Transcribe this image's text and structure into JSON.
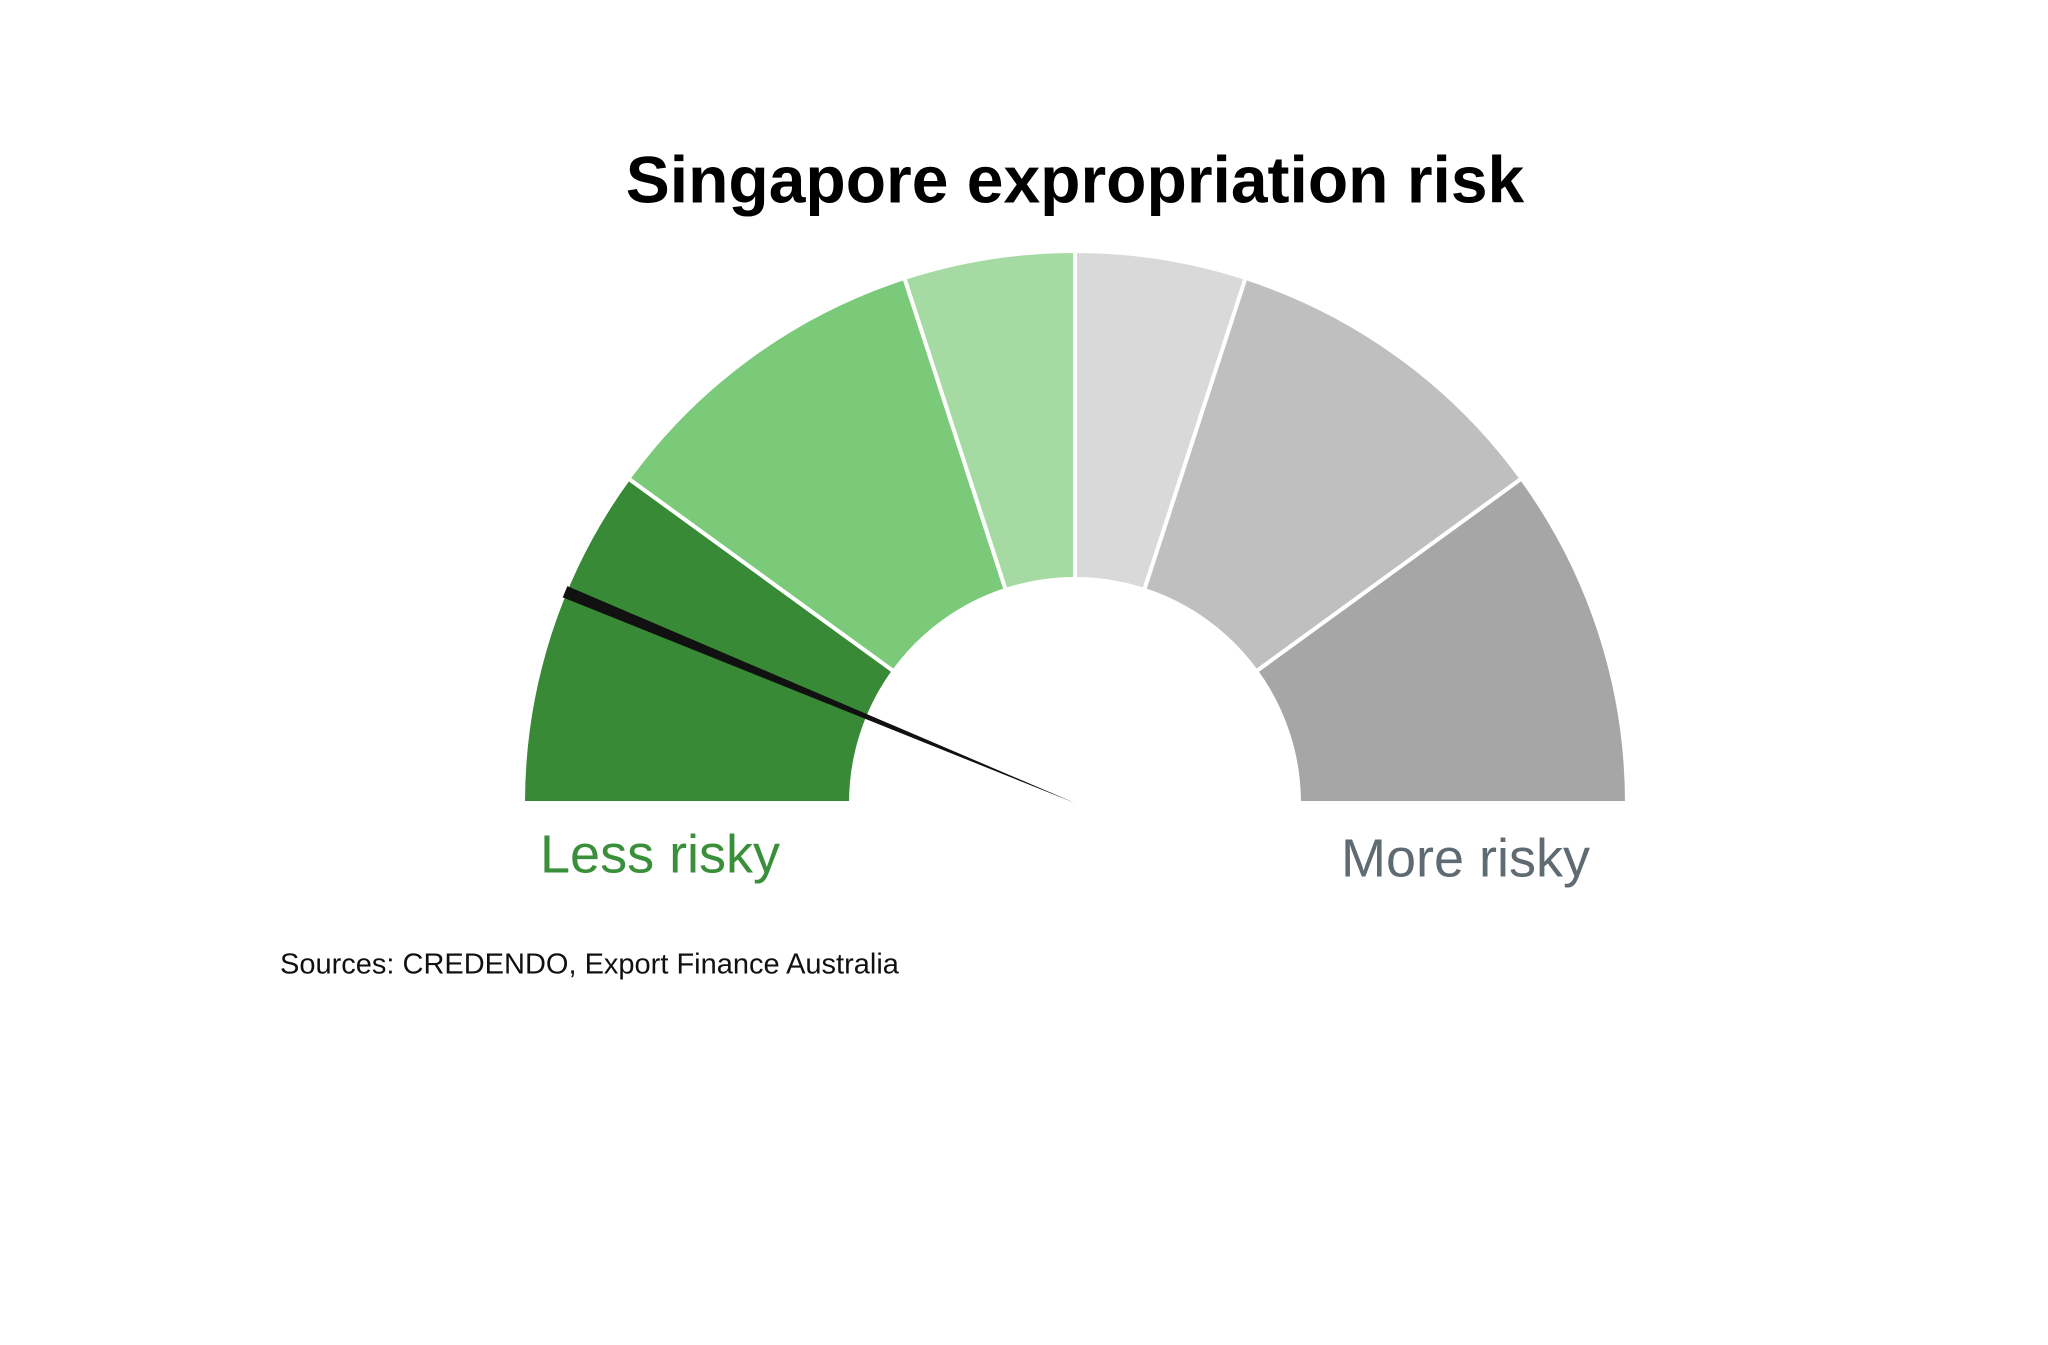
{
  "chart_data": {
    "type": "gauge",
    "title": "Singapore expropriation risk",
    "values": [
      2,
      2,
      1,
      1,
      2,
      2
    ],
    "colors": [
      "#388a36",
      "#7aca7a",
      "#a5dba3",
      "#d9d9d9",
      "#bfbfbf",
      "#a6a6a6"
    ],
    "lim": [
      0,
      10
    ],
    "needle_value": 1.25,
    "needle_color": "#111111",
    "min_label": "Less risky",
    "max_label": "More risky",
    "min_label_color": "#3a8f3a",
    "max_label_color": "#5f6b73",
    "source": "Sources: CREDENDO, Export Finance Australia"
  }
}
